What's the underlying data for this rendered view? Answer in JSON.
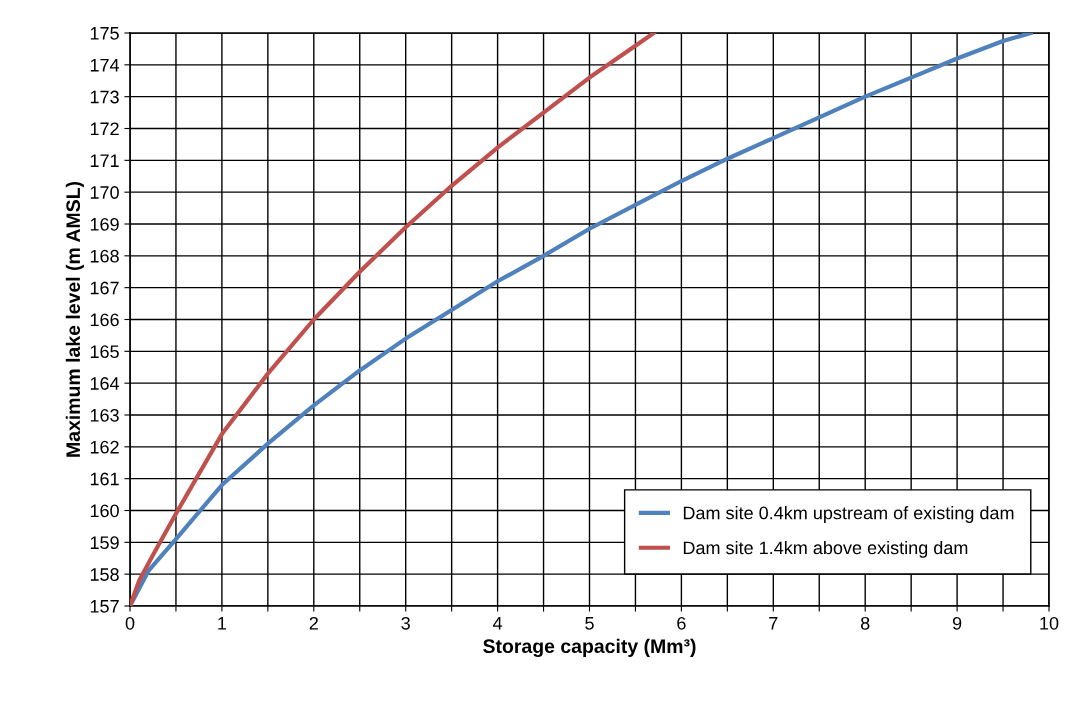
{
  "chart_data": {
    "type": "line",
    "xlabel": "Storage capacity (Mm³)",
    "ylabel": "Maximum lake level (m AMSL)",
    "xlim": [
      0,
      10
    ],
    "ylim": [
      157,
      175
    ],
    "xticks": [
      0,
      {
        "value": 0.5,
        "label": null
      },
      1,
      {
        "value": 1.5,
        "label": null
      },
      2,
      {
        "value": 2.5,
        "label": null
      },
      3,
      {
        "value": 3.5,
        "label": null
      },
      4,
      {
        "value": 4.5,
        "label": null
      },
      5,
      {
        "value": 5.5,
        "label": null
      },
      6,
      {
        "value": 6.5,
        "label": null
      },
      7,
      {
        "value": 7.5,
        "label": null
      },
      8,
      {
        "value": 8.5,
        "label": null
      },
      9,
      {
        "value": 9.5,
        "label": null
      },
      10
    ],
    "yticks": [
      157,
      158,
      159,
      160,
      161,
      162,
      163,
      164,
      165,
      166,
      167,
      168,
      169,
      170,
      171,
      172,
      173,
      174,
      175
    ],
    "grid": true,
    "legend": "bottom right",
    "marker": "none",
    "line_style": "solid",
    "series": [
      {
        "name": "Dam site 0.4km upstream of existing dam",
        "color": "#4f81bd",
        "x": [
          0,
          0.2,
          0.5,
          1,
          1.5,
          2,
          2.5,
          3,
          3.5,
          4,
          4.5,
          5,
          5.5,
          6,
          6.5,
          7,
          7.5,
          8,
          8.5,
          9,
          9.5,
          9.8
        ],
        "values": [
          157,
          158.1,
          159.1,
          160.8,
          162.1,
          163.3,
          164.4,
          165.4,
          166.3,
          167.2,
          168.0,
          168.85,
          169.6,
          170.35,
          171.05,
          171.7,
          172.35,
          173.0,
          173.6,
          174.2,
          174.75,
          175
        ]
      },
      {
        "name": "Dam site 1.4km above existing dam",
        "color": "#c0504d",
        "x": [
          0,
          0.1,
          0.25,
          0.5,
          1,
          1.5,
          2,
          2.5,
          3,
          3.5,
          4,
          4.5,
          5,
          5.5,
          5.7
        ],
        "values": [
          157,
          157.8,
          158.6,
          159.9,
          162.4,
          164.3,
          166.0,
          167.5,
          168.9,
          170.2,
          171.4,
          172.5,
          173.6,
          174.6,
          175
        ]
      }
    ]
  }
}
